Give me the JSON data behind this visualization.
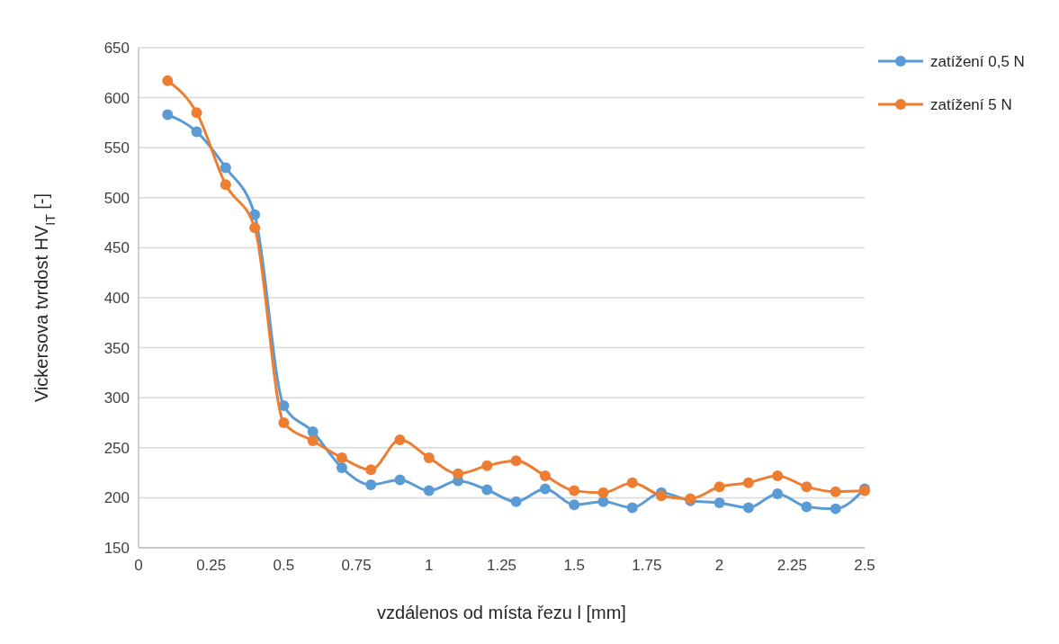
{
  "chart_data": {
    "type": "line",
    "xlabel": "vzdálenos od místa řezu l  [mm]",
    "ylabel": "Vickersova tvrdost HV$_{IT}$ [-]",
    "x": [
      0.1,
      0.2,
      0.3,
      0.4,
      0.5,
      0.6,
      0.7,
      0.8,
      0.9,
      1.0,
      1.1,
      1.2,
      1.3,
      1.4,
      1.5,
      1.6,
      1.7,
      1.8,
      1.9,
      2.0,
      2.1,
      2.2,
      2.3,
      2.4,
      2.5
    ],
    "series": [
      {
        "name": "zatížení 0,5 N",
        "color": "#5b9bd5",
        "values": [
          583,
          566,
          530,
          483,
          292,
          266,
          230,
          213,
          218,
          207,
          217,
          208,
          196,
          209,
          193,
          196,
          190,
          205,
          197,
          195,
          190,
          204,
          191,
          189,
          209
        ]
      },
      {
        "name": "zatížení 5 N",
        "color": "#ed7d31",
        "values": [
          617,
          585,
          513,
          470,
          275,
          257,
          240,
          228,
          258,
          240,
          224,
          232,
          237,
          222,
          207,
          205,
          215,
          202,
          199,
          211,
          215,
          222,
          211,
          206,
          207
        ]
      }
    ],
    "xlim": [
      0,
      2.5
    ],
    "xticks": [
      0,
      0.25,
      0.5,
      0.75,
      1,
      1.25,
      1.5,
      1.75,
      2,
      2.25,
      2.5
    ],
    "ylim": [
      150,
      650
    ],
    "yticks": [
      150,
      200,
      250,
      300,
      350,
      400,
      450,
      500,
      550,
      600,
      650
    ],
    "grid": "y",
    "legend": "right",
    "marker": "circle",
    "line_style": "solid"
  }
}
